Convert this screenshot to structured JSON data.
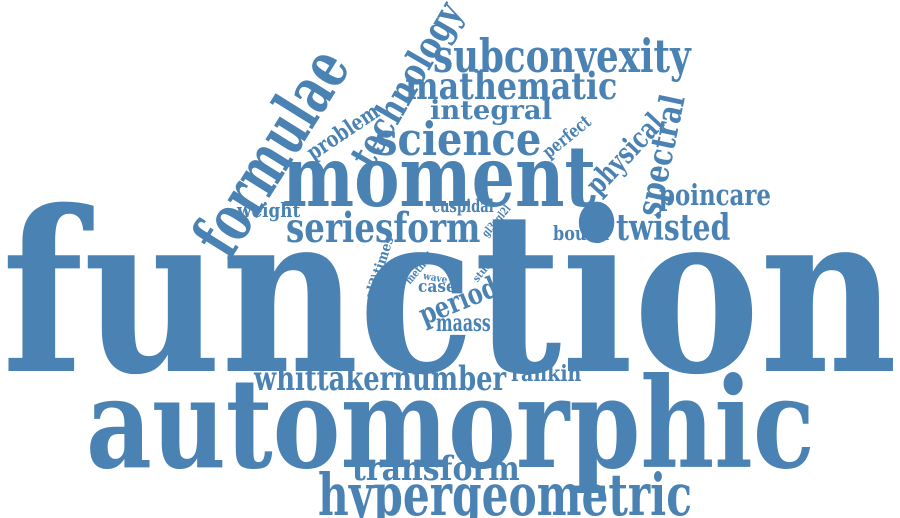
{
  "colors": {
    "word": "#4a82b4",
    "background": "#ffffff"
  },
  "words": [
    "function",
    "automorphic",
    "moment",
    "formulae",
    "hypergeometric",
    "subconvexity",
    "mathematic",
    "science",
    "technology",
    "spectral",
    "physical",
    "integral",
    "problem",
    "seriesform",
    "twisted",
    "poincare",
    "whittakernumber",
    "transform",
    "period",
    "maass",
    "rankin",
    "weight",
    "bound",
    "cuspidal",
    "perfect",
    "case",
    "gl3\\times",
    "gl3xgl2l",
    "method",
    "study",
    "wave"
  ]
}
